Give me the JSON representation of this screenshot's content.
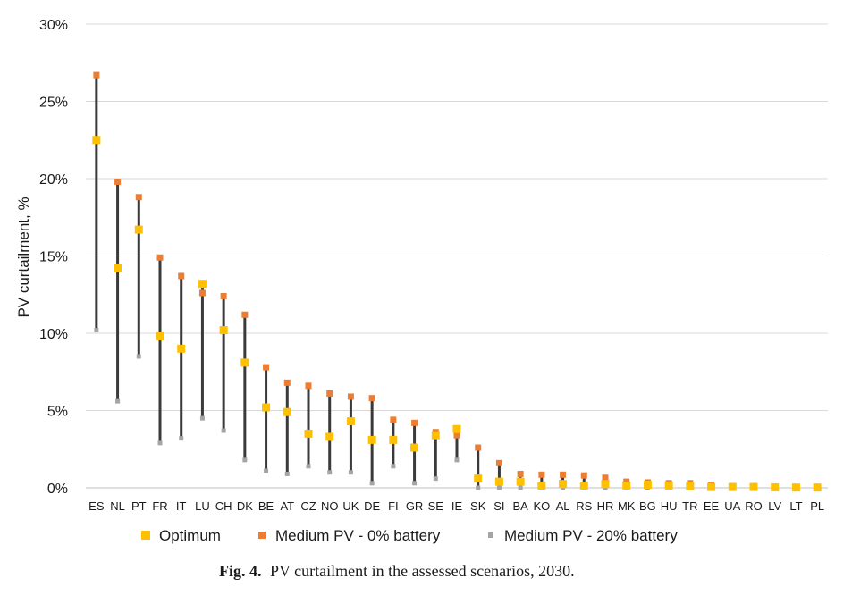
{
  "chart_data": {
    "type": "scatter",
    "ylabel": "PV curtailment, %",
    "xlabel": "",
    "ylim": [
      0,
      30
    ],
    "y_ticks": [
      "0%",
      "5%",
      "10%",
      "15%",
      "20%",
      "25%",
      "30%"
    ],
    "y_tick_values": [
      0,
      5,
      10,
      15,
      20,
      25,
      30
    ],
    "grid": "horizontal",
    "legend_position": "bottom",
    "categories": [
      "ES",
      "NL",
      "PT",
      "FR",
      "IT",
      "LU",
      "CH",
      "DK",
      "BE",
      "AT",
      "CZ",
      "NO",
      "UK",
      "DE",
      "FI",
      "GR",
      "SE",
      "IE",
      "SK",
      "SI",
      "BA",
      "KO",
      "AL",
      "RS",
      "HR",
      "MK",
      "BG",
      "HU",
      "TR",
      "EE",
      "UA",
      "RO",
      "LV",
      "LT",
      "PL"
    ],
    "series": [
      {
        "name": "Optimum",
        "color": "#FFC000",
        "values": [
          22.5,
          14.2,
          16.7,
          9.8,
          9.0,
          13.2,
          10.2,
          8.1,
          5.2,
          4.9,
          3.5,
          3.3,
          4.3,
          3.1,
          3.1,
          2.6,
          3.4,
          3.8,
          0.6,
          0.4,
          0.4,
          0.15,
          0.25,
          0.15,
          0.25,
          0.15,
          0.2,
          0.15,
          0.1,
          0.05,
          0.05,
          0.05,
          0.03,
          0.02,
          0.02
        ]
      },
      {
        "name": "Medium PV - 0% battery",
        "color": "#ED7D31",
        "values": [
          26.7,
          19.8,
          18.8,
          14.9,
          13.7,
          12.6,
          12.4,
          11.2,
          7.8,
          6.8,
          6.6,
          6.1,
          5.9,
          5.8,
          4.4,
          4.2,
          3.6,
          3.4,
          2.6,
          1.6,
          0.9,
          0.85,
          0.85,
          0.8,
          0.65,
          0.4,
          0.35,
          0.3,
          0.3,
          0.2,
          0.1,
          0.1,
          0.05,
          0.05,
          0.05
        ]
      },
      {
        "name": "Medium PV - 20% battery",
        "color": "#A5A5A5",
        "values": [
          10.2,
          5.6,
          8.5,
          2.9,
          3.2,
          4.5,
          3.7,
          1.8,
          1.1,
          0.9,
          1.4,
          1.0,
          1.0,
          0.3,
          1.4,
          0.3,
          0.6,
          1.8,
          0.0,
          0.0,
          0.0,
          0.0,
          0.0,
          0.0,
          0.0,
          0.0,
          0.0,
          0.0,
          0.0,
          0.0,
          0.0,
          0.0,
          0.0,
          0.0,
          0.0
        ]
      }
    ],
    "range_line_color": "#3A3A3A"
  },
  "caption": {
    "label": "Fig. 4.",
    "text": "PV curtailment in the assessed scenarios, 2030."
  }
}
